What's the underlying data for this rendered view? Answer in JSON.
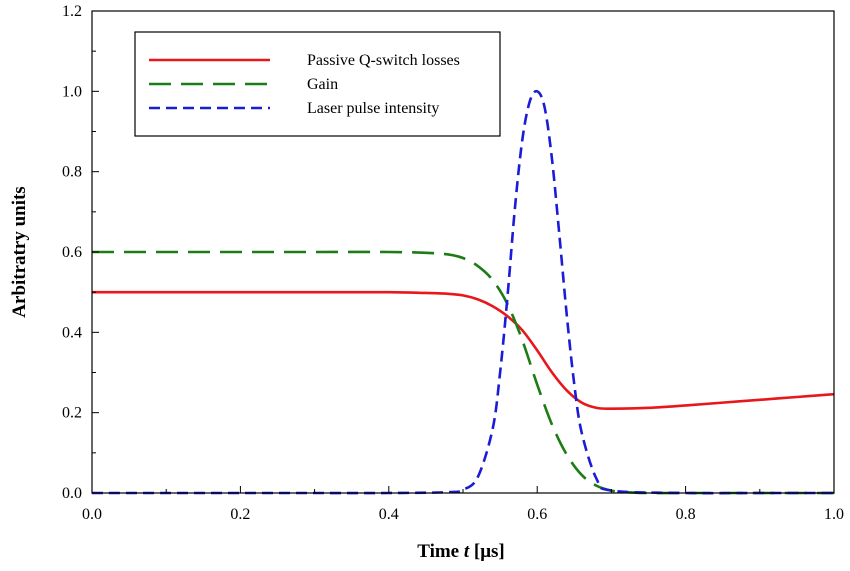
{
  "chart_data": {
    "type": "line",
    "title": "",
    "xlabel": "Time t [μs]",
    "xlabel_parts": {
      "pre": "Time ",
      "italic": "t",
      "post": " [μs]"
    },
    "ylabel": "Arbitratry units",
    "xlim": [
      0.0,
      1.0
    ],
    "ylim": [
      0.0,
      1.2
    ],
    "xticks": [
      0.0,
      0.2,
      0.4,
      0.6,
      0.8,
      1.0
    ],
    "xtick_labels": [
      "0.0",
      "0.2",
      "0.4",
      "0.6",
      "0.8",
      "1.0"
    ],
    "yticks": [
      0.0,
      0.2,
      0.4,
      0.6,
      0.8,
      1.0,
      1.2
    ],
    "ytick_labels": [
      "0.0",
      "0.2",
      "0.4",
      "0.6",
      "0.8",
      "1.0",
      "1.2"
    ],
    "grid": false,
    "legend_position": "top-left",
    "series": [
      {
        "name": "Passive Q-switch losses",
        "color": "#e8171b",
        "dash": "solid",
        "x": [
          0.0,
          0.1,
          0.2,
          0.3,
          0.4,
          0.45,
          0.48,
          0.5,
          0.52,
          0.54,
          0.56,
          0.58,
          0.6,
          0.62,
          0.64,
          0.66,
          0.68,
          0.7,
          0.75,
          0.8,
          0.85,
          0.9,
          0.95,
          1.0
        ],
        "y": [
          0.5,
          0.5,
          0.5,
          0.5,
          0.5,
          0.498,
          0.496,
          0.492,
          0.482,
          0.465,
          0.44,
          0.405,
          0.355,
          0.3,
          0.255,
          0.225,
          0.212,
          0.21,
          0.212,
          0.218,
          0.225,
          0.232,
          0.239,
          0.246
        ]
      },
      {
        "name": "Gain",
        "color": "#1c7c15",
        "dash": "long-dash",
        "x": [
          0.0,
          0.1,
          0.2,
          0.3,
          0.4,
          0.45,
          0.48,
          0.5,
          0.52,
          0.54,
          0.56,
          0.58,
          0.6,
          0.62,
          0.64,
          0.66,
          0.68,
          0.7,
          0.72,
          0.75,
          0.8,
          0.9,
          1.0
        ],
        "y": [
          0.6,
          0.6,
          0.6,
          0.6,
          0.6,
          0.598,
          0.594,
          0.585,
          0.565,
          0.53,
          0.47,
          0.38,
          0.27,
          0.17,
          0.095,
          0.045,
          0.018,
          0.006,
          0.002,
          0.0,
          0.0,
          0.0,
          0.0
        ]
      },
      {
        "name": "Laser pulse intensity",
        "color": "#1c1cd6",
        "dash": "short-dash",
        "x": [
          0.0,
          0.1,
          0.2,
          0.3,
          0.4,
          0.48,
          0.5,
          0.52,
          0.54,
          0.55,
          0.56,
          0.57,
          0.58,
          0.59,
          0.6,
          0.61,
          0.62,
          0.63,
          0.64,
          0.65,
          0.66,
          0.68,
          0.7,
          0.8,
          0.9,
          1.0
        ],
        "y": [
          0.0,
          0.0,
          0.0,
          0.0,
          0.0,
          0.002,
          0.008,
          0.04,
          0.16,
          0.3,
          0.49,
          0.71,
          0.88,
          0.975,
          1.0,
          0.96,
          0.83,
          0.64,
          0.44,
          0.27,
          0.15,
          0.035,
          0.006,
          0.0,
          0.0,
          0.0
        ]
      }
    ]
  }
}
